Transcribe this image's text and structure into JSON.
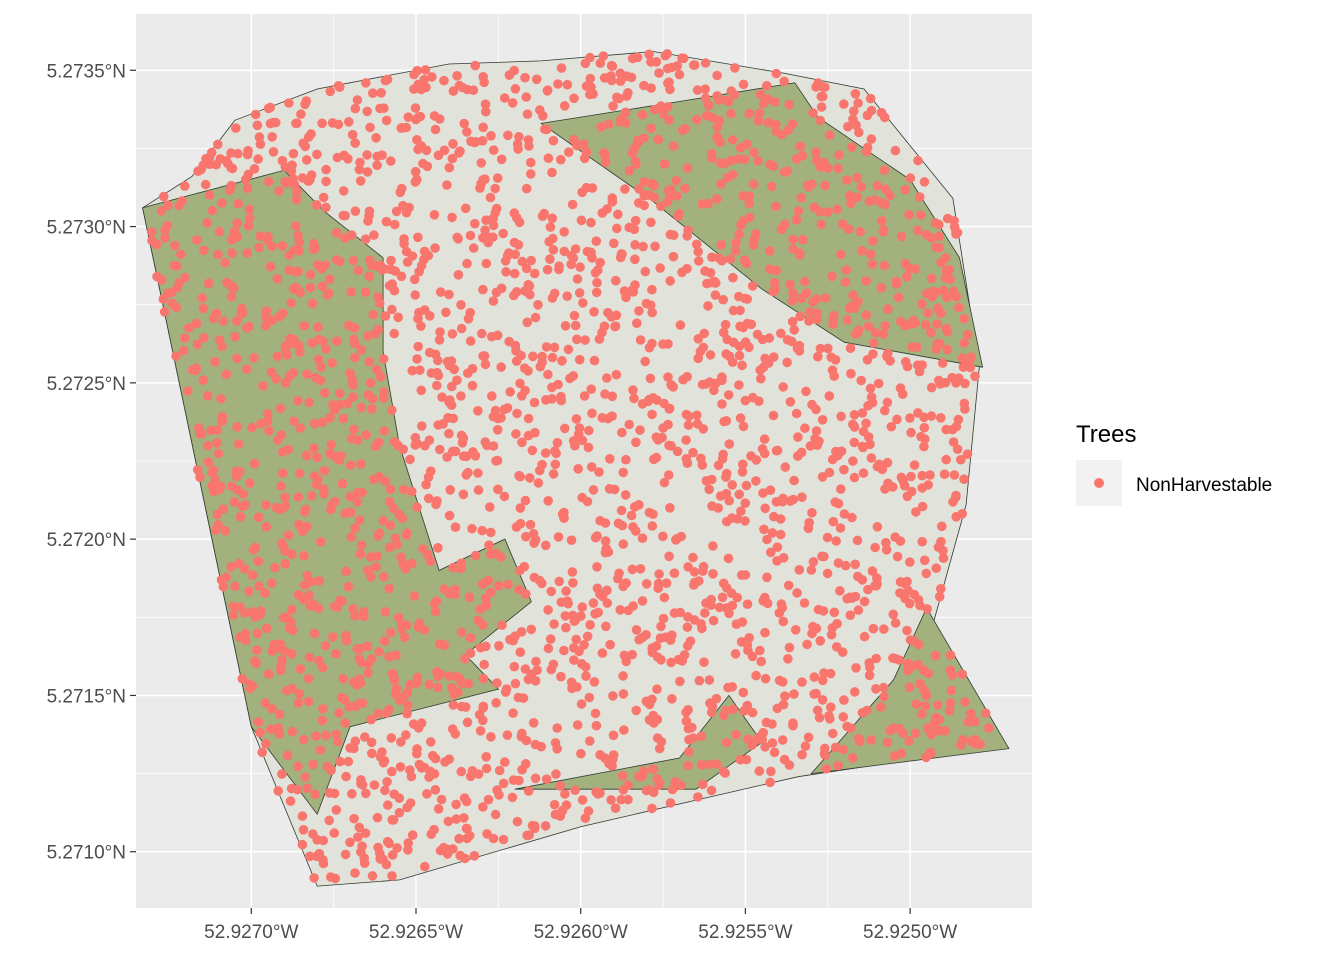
{
  "chart_data": {
    "type": "scatter",
    "title": "",
    "xlabel": "",
    "ylabel": "",
    "x_axis": {
      "ticks": [
        -52.927,
        -52.9265,
        -52.926,
        -52.9255,
        -52.925
      ],
      "tick_labels": [
        "52.9270°W",
        "52.9265°W",
        "52.9260°W",
        "52.9255°W",
        "52.9250°W"
      ],
      "range": [
        -52.92735,
        -52.92463
      ]
    },
    "y_axis": {
      "ticks": [
        5.271,
        5.2715,
        5.272,
        5.2725,
        5.273,
        5.2735
      ],
      "tick_labels": [
        "5.2710°N",
        "5.2715°N",
        "5.2720°N",
        "5.2725°N",
        "5.2730°N",
        "5.2735°N"
      ],
      "range": [
        5.27082,
        5.27368
      ]
    },
    "grid": true,
    "legend": {
      "title": "Trees",
      "position": "right",
      "entries": [
        {
          "label": "NonHarvestable",
          "color": "#F8766D"
        }
      ]
    },
    "series": [
      {
        "name": "NonHarvestable",
        "color": "#F8766D",
        "note_points": "thousands of tree locations scattered across plot"
      }
    ],
    "polygons": {
      "fill_dark": "#A3B17F",
      "fill_light": "#E1E3DB",
      "stroke": "#2F3A2F",
      "plot_boundary": [
        [
          -52.92733,
          5.27306
        ],
        [
          -52.92718,
          5.27316
        ],
        [
          -52.92705,
          5.27334
        ],
        [
          -52.9268,
          5.27344
        ],
        [
          -52.9264,
          5.27352
        ],
        [
          -52.92612,
          5.27353
        ],
        [
          -52.92578,
          5.27356
        ],
        [
          -52.92538,
          5.27349
        ],
        [
          -52.92514,
          5.27344
        ],
        [
          -52.92487,
          5.27309
        ],
        [
          -52.92479,
          5.27255
        ],
        [
          -52.92483,
          5.27211
        ],
        [
          -52.92493,
          5.27173
        ],
        [
          -52.92471,
          5.27134
        ],
        [
          -52.92534,
          5.27124
        ],
        [
          -52.926,
          5.27108
        ],
        [
          -52.92655,
          5.27091
        ],
        [
          -52.9268,
          5.27089
        ],
        [
          -52.927,
          5.2714
        ],
        [
          -52.92733,
          5.27306
        ]
      ],
      "dark_patches": [
        [
          [
            -52.92733,
            5.27306
          ],
          [
            -52.9269,
            5.27318
          ],
          [
            -52.92678,
            5.27305
          ],
          [
            -52.9266,
            5.2729
          ],
          [
            -52.9266,
            5.2726
          ],
          [
            -52.92655,
            5.2723
          ],
          [
            -52.92643,
            5.2719
          ],
          [
            -52.92623,
            5.272
          ],
          [
            -52.92615,
            5.2718
          ],
          [
            -52.92635,
            5.27163
          ],
          [
            -52.92625,
            5.27152
          ],
          [
            -52.9267,
            5.2714
          ],
          [
            -52.9268,
            5.27112
          ],
          [
            -52.927,
            5.2714
          ],
          [
            -52.92733,
            5.27306
          ]
        ],
        [
          [
            -52.92612,
            5.27333
          ],
          [
            -52.9257,
            5.2734
          ],
          [
            -52.92535,
            5.27346
          ],
          [
            -52.92528,
            5.27335
          ],
          [
            -52.925,
            5.27315
          ],
          [
            -52.92485,
            5.2729
          ],
          [
            -52.92478,
            5.27255
          ],
          [
            -52.9252,
            5.27263
          ],
          [
            -52.92545,
            5.2728
          ],
          [
            -52.92578,
            5.27308
          ],
          [
            -52.92612,
            5.27333
          ]
        ],
        [
          [
            -52.9262,
            5.2712
          ],
          [
            -52.9257,
            5.2713
          ],
          [
            -52.92555,
            5.2715
          ],
          [
            -52.92545,
            5.27135
          ],
          [
            -52.92565,
            5.2712
          ],
          [
            -52.9262,
            5.2712
          ]
        ],
        [
          [
            -52.92495,
            5.27178
          ],
          [
            -52.9247,
            5.27133
          ],
          [
            -52.9253,
            5.27125
          ],
          [
            -52.92505,
            5.27155
          ],
          [
            -52.92495,
            5.27178
          ]
        ]
      ]
    }
  }
}
